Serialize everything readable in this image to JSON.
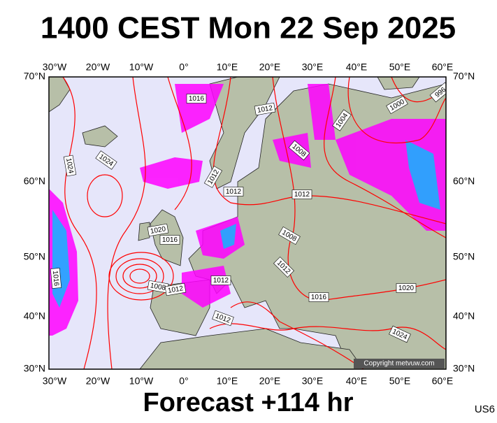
{
  "title": "1400 CEST Mon 22 Sep 2025",
  "longitude_labels": [
    "30°W",
    "20°W",
    "10°W",
    "0°",
    "10°E",
    "20°E",
    "30°E",
    "40°E",
    "50°E",
    "60°E"
  ],
  "latitude_labels": [
    "70°N",
    "60°N",
    "50°N",
    "40°N",
    "30°N"
  ],
  "isobar_labels": [
    "1016",
    "1012",
    "1000",
    "996",
    "1004",
    "1008",
    "1024",
    "1024",
    "1012",
    "1012",
    "1012",
    "1020",
    "1016",
    "1008",
    "1012",
    "1016",
    "1008",
    "1012",
    "1012",
    "1016",
    "1020",
    "1012",
    "1024"
  ],
  "copyright": "Copyright metvuw.com",
  "footer": "Forecast +114 hr",
  "model": "US6"
}
